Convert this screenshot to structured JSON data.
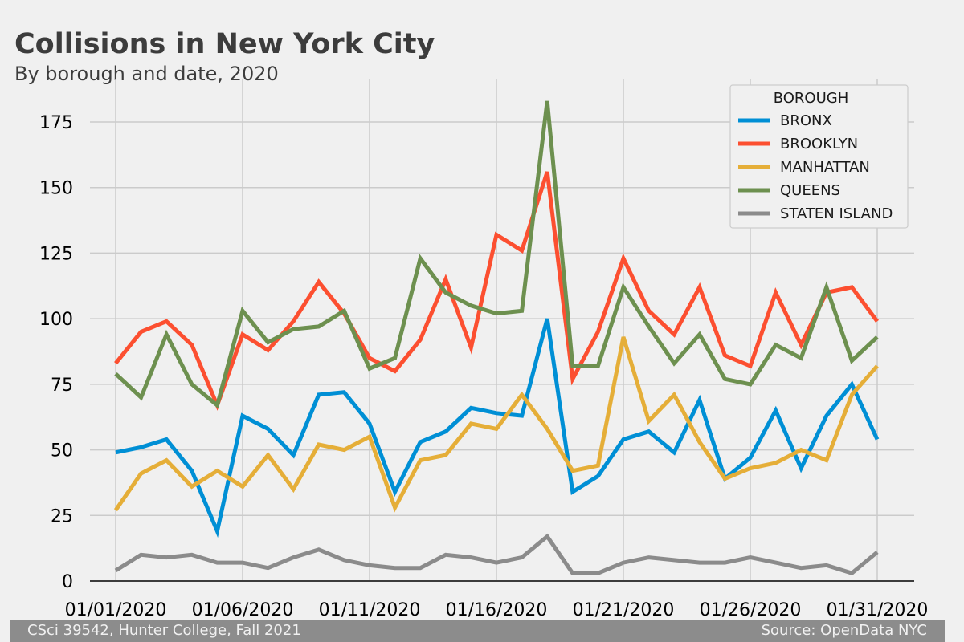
{
  "chart_data": {
    "type": "line",
    "title": "Collisions in New York City",
    "subtitle": "By borough and date, 2020",
    "xlabel": "",
    "ylabel": "",
    "x": [
      "01/01/2020",
      "01/02/2020",
      "01/03/2020",
      "01/04/2020",
      "01/05/2020",
      "01/06/2020",
      "01/07/2020",
      "01/08/2020",
      "01/09/2020",
      "01/10/2020",
      "01/11/2020",
      "01/12/2020",
      "01/13/2020",
      "01/14/2020",
      "01/15/2020",
      "01/16/2020",
      "01/17/2020",
      "01/18/2020",
      "01/19/2020",
      "01/20/2020",
      "01/21/2020",
      "01/22/2020",
      "01/23/2020",
      "01/24/2020",
      "01/25/2020",
      "01/26/2020",
      "01/27/2020",
      "01/28/2020",
      "01/29/2020",
      "01/30/2020",
      "01/31/2020"
    ],
    "x_tick_labels": [
      "01/01/2020",
      "01/06/2020",
      "01/11/2020",
      "01/16/2020",
      "01/21/2020",
      "01/26/2020",
      "01/31/2020"
    ],
    "ylim": [
      0,
      190
    ],
    "y_ticks": [
      0,
      25,
      50,
      75,
      100,
      125,
      150,
      175
    ],
    "grid": true,
    "legend": {
      "title": "BOROUGH",
      "position": "top-right"
    },
    "series": [
      {
        "name": "BRONX",
        "color": "#008fd5",
        "values": [
          49,
          51,
          54,
          42,
          19,
          63,
          58,
          48,
          71,
          72,
          60,
          34,
          53,
          57,
          66,
          64,
          63,
          100,
          34,
          40,
          54,
          57,
          49,
          69,
          39,
          47,
          65,
          43,
          63,
          75,
          54
        ]
      },
      {
        "name": "BROOKLYN",
        "color": "#fc4f30",
        "values": [
          83,
          95,
          99,
          90,
          67,
          94,
          88,
          99,
          114,
          102,
          85,
          80,
          92,
          115,
          89,
          132,
          126,
          156,
          77,
          95,
          123,
          103,
          94,
          112,
          86,
          82,
          110,
          90,
          110,
          112,
          99
        ]
      },
      {
        "name": "MANHATTAN",
        "color": "#e5ae38",
        "values": [
          27,
          41,
          46,
          36,
          42,
          36,
          48,
          35,
          52,
          50,
          55,
          28,
          46,
          48,
          60,
          58,
          71,
          58,
          42,
          44,
          93,
          61,
          71,
          53,
          39,
          43,
          45,
          50,
          46,
          71,
          82
        ]
      },
      {
        "name": "QUEENS",
        "color": "#6d904f",
        "values": [
          79,
          70,
          94,
          75,
          67,
          103,
          91,
          96,
          97,
          103,
          81,
          85,
          123,
          110,
          105,
          102,
          103,
          183,
          82,
          82,
          112,
          97,
          83,
          94,
          77,
          75,
          90,
          85,
          112,
          84,
          93
        ]
      },
      {
        "name": "STATEN ISLAND",
        "color": "#8b8b8b",
        "values": [
          4,
          10,
          9,
          10,
          7,
          7,
          5,
          9,
          12,
          8,
          6,
          5,
          5,
          10,
          9,
          7,
          9,
          17,
          3,
          3,
          7,
          9,
          8,
          7,
          7,
          9,
          7,
          5,
          6,
          3,
          11
        ]
      }
    ]
  },
  "footer": {
    "left": "CSci 39542, Hunter College, Fall 2021",
    "right": "Source: OpenData NYC"
  }
}
